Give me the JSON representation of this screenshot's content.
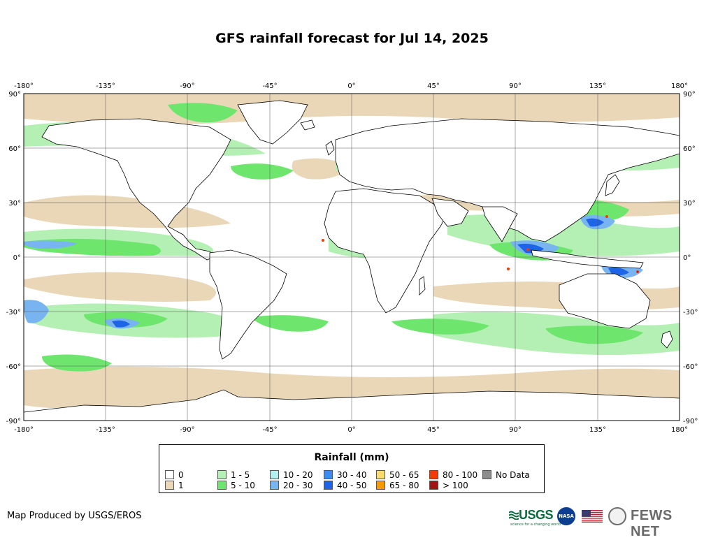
{
  "title": "GFS rainfall forecast for Jul 14, 2025",
  "axes": {
    "top": [
      "-180°",
      "-135°",
      "-90°",
      "-45°",
      "0°",
      "45°",
      "90°",
      "135°",
      "180°"
    ],
    "bottom": [
      "-180°",
      "-135°",
      "-90°",
      "-45°",
      "0°",
      "45°",
      "90°",
      "135°",
      "180°"
    ],
    "left": [
      "90°",
      "60°",
      "30°",
      "0°",
      "-30°",
      "-60°",
      "-90°"
    ],
    "right": [
      "90°",
      "60°",
      "30°",
      "0°",
      "-30°",
      "-60°",
      "-90°"
    ]
  },
  "map": {
    "ocean_color": "#ffffff",
    "land_border_color": "#000000",
    "grid_color": "#555555"
  },
  "legend": {
    "title": "Rainfall (mm)",
    "classes": [
      {
        "label": "0",
        "color": "#ffffff"
      },
      {
        "label": "1",
        "color": "#ead7b7"
      },
      {
        "label": "1 - 5",
        "color": "#b4f0b4"
      },
      {
        "label": "5 - 10",
        "color": "#6ee66e"
      },
      {
        "label": "10 - 20",
        "color": "#b4f0f0"
      },
      {
        "label": "20 - 30",
        "color": "#78b4f0"
      },
      {
        "label": "30 - 40",
        "color": "#3c8cf0"
      },
      {
        "label": "40 - 50",
        "color": "#1e64e6"
      },
      {
        "label": "50 - 65",
        "color": "#fadc6e"
      },
      {
        "label": "65 - 80",
        "color": "#f59b00"
      },
      {
        "label": "80 - 100",
        "color": "#f03c00"
      },
      {
        "label": "> 100",
        "color": "#a01414"
      },
      {
        "label": "No Data",
        "color": "#8c8c8c"
      }
    ]
  },
  "credit": "Map Produced by USGS/EROS",
  "logos": {
    "usgs": "USGS",
    "usgs_tagline": "science for a changing world",
    "nasa": "NASA",
    "fews": "FEWS NET"
  }
}
